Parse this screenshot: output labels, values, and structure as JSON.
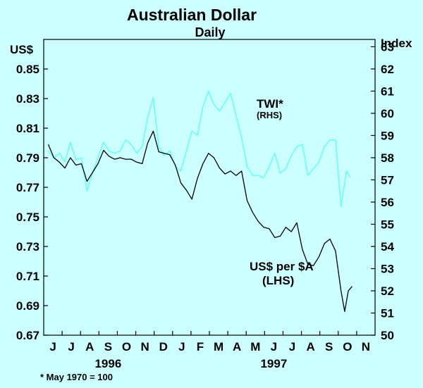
{
  "chart_data": {
    "type": "line",
    "title": "Australian Dollar",
    "subtitle": "Daily",
    "left_axis": {
      "unit_label": "US$",
      "ylim": [
        0.67,
        0.87
      ],
      "tick_labels": [
        "0.85",
        "0.83",
        "0.81",
        "0.79",
        "0.77",
        "0.75",
        "0.73",
        "0.71",
        "0.69",
        "0.67"
      ],
      "tick_values": [
        0.85,
        0.83,
        0.81,
        0.79,
        0.77,
        0.75,
        0.73,
        0.71,
        0.69,
        0.67
      ]
    },
    "right_axis": {
      "unit_label": "Index",
      "ylim": [
        50,
        63.33
      ],
      "tick_labels": [
        "63",
        "62",
        "61",
        "60",
        "59",
        "58",
        "57",
        "56",
        "55",
        "54",
        "53",
        "52",
        "51",
        "50"
      ],
      "tick_values": [
        63,
        62,
        61,
        60,
        59,
        58,
        57,
        56,
        55,
        54,
        53,
        52,
        51,
        50
      ]
    },
    "x_axis": {
      "month_labels": [
        "J",
        "J",
        "A",
        "S",
        "O",
        "N",
        "D",
        "J",
        "F",
        "M",
        "A",
        "M",
        "J",
        "J",
        "A",
        "S",
        "O",
        "N"
      ],
      "year_labels": [
        {
          "label": "1996",
          "month_index": 3
        },
        {
          "label": "1997",
          "month_index": 12
        }
      ]
    },
    "series": [
      {
        "name": "TWI*",
        "name_sub": "(RHS)",
        "axis": "right",
        "color": "#66FFFF",
        "x": [
          0,
          0.3,
          0.6,
          0.9,
          1.2,
          1.5,
          1.8,
          2.1,
          2.4,
          2.7,
          3.0,
          3.3,
          3.6,
          3.9,
          4.2,
          4.5,
          4.8,
          5.1,
          5.4,
          5.7,
          6.0,
          6.3,
          6.6,
          6.9,
          7.2,
          7.5,
          7.8,
          8.1,
          8.4,
          8.7,
          9.0,
          9.3,
          9.6,
          9.9,
          10.2,
          10.5,
          10.8,
          11.1,
          11.4,
          11.7,
          12.0,
          12.3,
          12.6,
          12.9,
          13.2,
          13.5,
          13.8,
          14.1,
          14.4,
          14.7,
          15.0,
          15.3,
          15.6,
          15.9,
          16.2,
          16.4
        ],
        "values": [
          58.3,
          58.0,
          58.2,
          57.8,
          58.7,
          57.9,
          58.0,
          56.5,
          57.3,
          58.0,
          58.7,
          58.3,
          58.2,
          58.3,
          58.8,
          58.6,
          58.2,
          58.5,
          59.8,
          60.7,
          58.5,
          58.1,
          58.3,
          57.6,
          57.4,
          58.3,
          59.2,
          59.0,
          60.3,
          61.0,
          60.4,
          60.1,
          60.5,
          60.9,
          59.9,
          58.9,
          57.6,
          57.2,
          57.2,
          57.1,
          57.6,
          58.2,
          57.3,
          57.5,
          58.1,
          58.5,
          58.6,
          57.2,
          57.5,
          57.8,
          58.5,
          58.8,
          58.8,
          55.8,
          57.4,
          57.1
        ]
      },
      {
        "name": "US$ per $A",
        "name_sub": "(LHS)",
        "axis": "left",
        "color": "#000000",
        "x": [
          0,
          0.3,
          0.6,
          0.9,
          1.2,
          1.5,
          1.8,
          2.1,
          2.4,
          2.7,
          3.0,
          3.3,
          3.6,
          3.9,
          4.2,
          4.5,
          4.8,
          5.1,
          5.4,
          5.7,
          6.0,
          6.3,
          6.6,
          6.9,
          7.2,
          7.5,
          7.8,
          8.1,
          8.4,
          8.7,
          9.0,
          9.3,
          9.6,
          9.9,
          10.2,
          10.5,
          10.8,
          11.1,
          11.4,
          11.7,
          12.0,
          12.3,
          12.6,
          12.9,
          13.2,
          13.5,
          13.8,
          14.1,
          14.4,
          14.7,
          15.0,
          15.3,
          15.6,
          15.9,
          16.1,
          16.3,
          16.5
        ],
        "values": [
          0.799,
          0.79,
          0.787,
          0.783,
          0.79,
          0.785,
          0.786,
          0.774,
          0.78,
          0.786,
          0.795,
          0.791,
          0.789,
          0.79,
          0.789,
          0.789,
          0.787,
          0.786,
          0.8,
          0.808,
          0.794,
          0.793,
          0.792,
          0.785,
          0.773,
          0.768,
          0.762,
          0.776,
          0.786,
          0.793,
          0.79,
          0.783,
          0.779,
          0.781,
          0.778,
          0.781,
          0.761,
          0.753,
          0.747,
          0.743,
          0.742,
          0.736,
          0.737,
          0.743,
          0.74,
          0.746,
          0.728,
          0.718,
          0.717,
          0.723,
          0.732,
          0.735,
          0.727,
          0.7,
          0.686,
          0.7,
          0.703
        ]
      }
    ],
    "footnote": "*   May 1970 = 100"
  }
}
